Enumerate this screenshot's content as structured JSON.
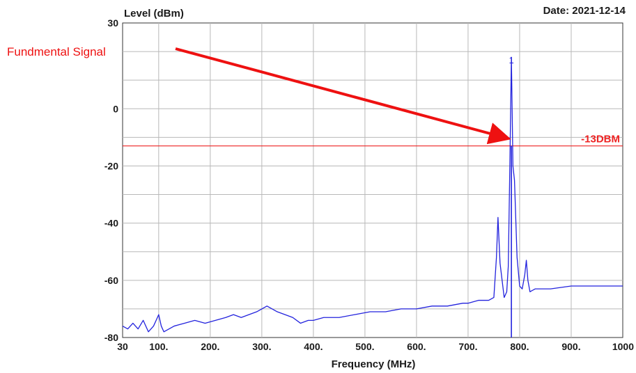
{
  "chart_data": {
    "type": "line",
    "title": "",
    "ylabel": "Level (dBm)",
    "xlabel": "Frequency (MHz)",
    "date_label": "Date: 2021-12-14",
    "ylim": [
      -80,
      30
    ],
    "xlim": [
      30,
      1000
    ],
    "yticks": [
      30,
      0,
      -20,
      -40,
      -60,
      -80
    ],
    "ytick_labels": [
      "30",
      "0",
      "-20",
      "-40",
      "-60",
      "-80"
    ],
    "xticks": [
      30,
      100,
      200,
      300,
      400,
      500,
      600,
      700,
      800,
      900,
      1000
    ],
    "xtick_labels": [
      "30",
      "100.",
      "200.",
      "300.",
      "400.",
      "500.",
      "600.",
      "700.",
      "800.",
      "900.",
      "1000"
    ],
    "grid": true,
    "colors": {
      "trace": "#2222dd",
      "limit": "#ee2222",
      "annotation": "#ee1111",
      "grid": "#b8b8b8"
    },
    "series": [
      {
        "x": [
          30,
          40,
          50,
          60,
          70,
          80,
          90,
          95,
          100,
          105,
          110,
          130,
          150,
          170,
          190,
          210,
          230,
          245,
          260,
          275,
          290,
          300,
          310,
          320,
          330,
          345,
          360,
          375,
          390,
          400,
          420,
          450,
          480,
          510,
          540,
          570,
          600,
          630,
          660,
          690,
          700,
          720,
          730,
          740,
          750,
          755,
          758,
          762,
          770,
          775,
          778,
          781,
          784,
          787,
          790,
          795,
          800,
          805,
          810,
          813,
          816,
          820,
          830,
          860,
          900,
          940,
          980,
          1000
        ],
        "values": [
          -76,
          -77,
          -75,
          -77,
          -74,
          -78,
          -76,
          -74,
          -72,
          -76,
          -78,
          -76,
          -75,
          -74,
          -75,
          -74,
          -73,
          -72,
          -73,
          -72,
          -71,
          -70,
          -69,
          -70,
          -71,
          -72,
          -73,
          -75,
          -74,
          -74,
          -73,
          -73,
          -72,
          -71,
          -71,
          -70,
          -70,
          -69,
          -69,
          -68,
          -68,
          -67,
          -67,
          -67,
          -66,
          -52,
          -38,
          -54,
          -66,
          -64,
          -55,
          -20,
          18,
          -20,
          -25,
          -52,
          -62,
          -63,
          -58,
          -53,
          -60,
          -64,
          -63,
          -63,
          -62,
          -62,
          -62,
          -62
        ]
      }
    ],
    "reference_lines": [
      {
        "y": -13,
        "label": "-13DBM"
      }
    ],
    "markers": [
      {
        "x": 784,
        "label": "1"
      }
    ],
    "annotations": [
      {
        "text": "Fundmental Signal"
      }
    ]
  }
}
